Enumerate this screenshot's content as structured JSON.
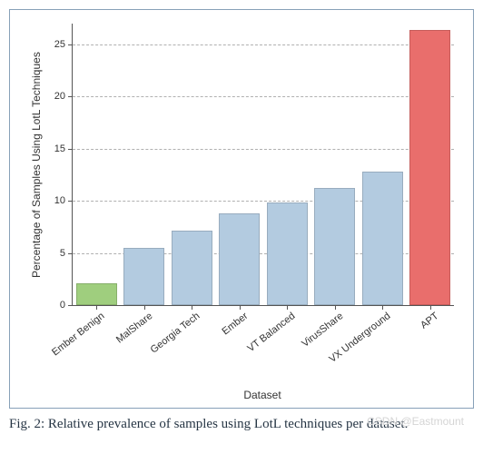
{
  "chart": {
    "type": "bar",
    "categories": [
      "Ember Benign",
      "MalShare",
      "Georgia Tech",
      "Ember",
      "VT Balanced",
      "VirusShare",
      "VX Underground",
      "APT"
    ],
    "values": [
      2.1,
      5.5,
      7.1,
      8.8,
      9.8,
      11.2,
      12.8,
      26.4
    ],
    "bar_colors": [
      "#9fce7e",
      "#b3cbe0",
      "#b3cbe0",
      "#b3cbe0",
      "#b3cbe0",
      "#b3cbe0",
      "#b3cbe0",
      "#e96e6c"
    ],
    "ylabel": "Percentage of Samples Using LotL Techniques",
    "xlabel": "Dataset",
    "label_fontsize": 12,
    "tick_fontsize": 11,
    "ylim": [
      0,
      27
    ],
    "yticks": [
      0,
      5,
      10,
      15,
      20,
      25
    ],
    "background_color": "#ffffff",
    "grid_color": "#b0b0b0",
    "grid_dashed": true,
    "bar_width": 0.85,
    "xtick_rotation": 38
  },
  "caption": "Fig. 2: Relative prevalence of samples using LotL techniques per dataset.",
  "watermark": "CSDN @Eastmount"
}
